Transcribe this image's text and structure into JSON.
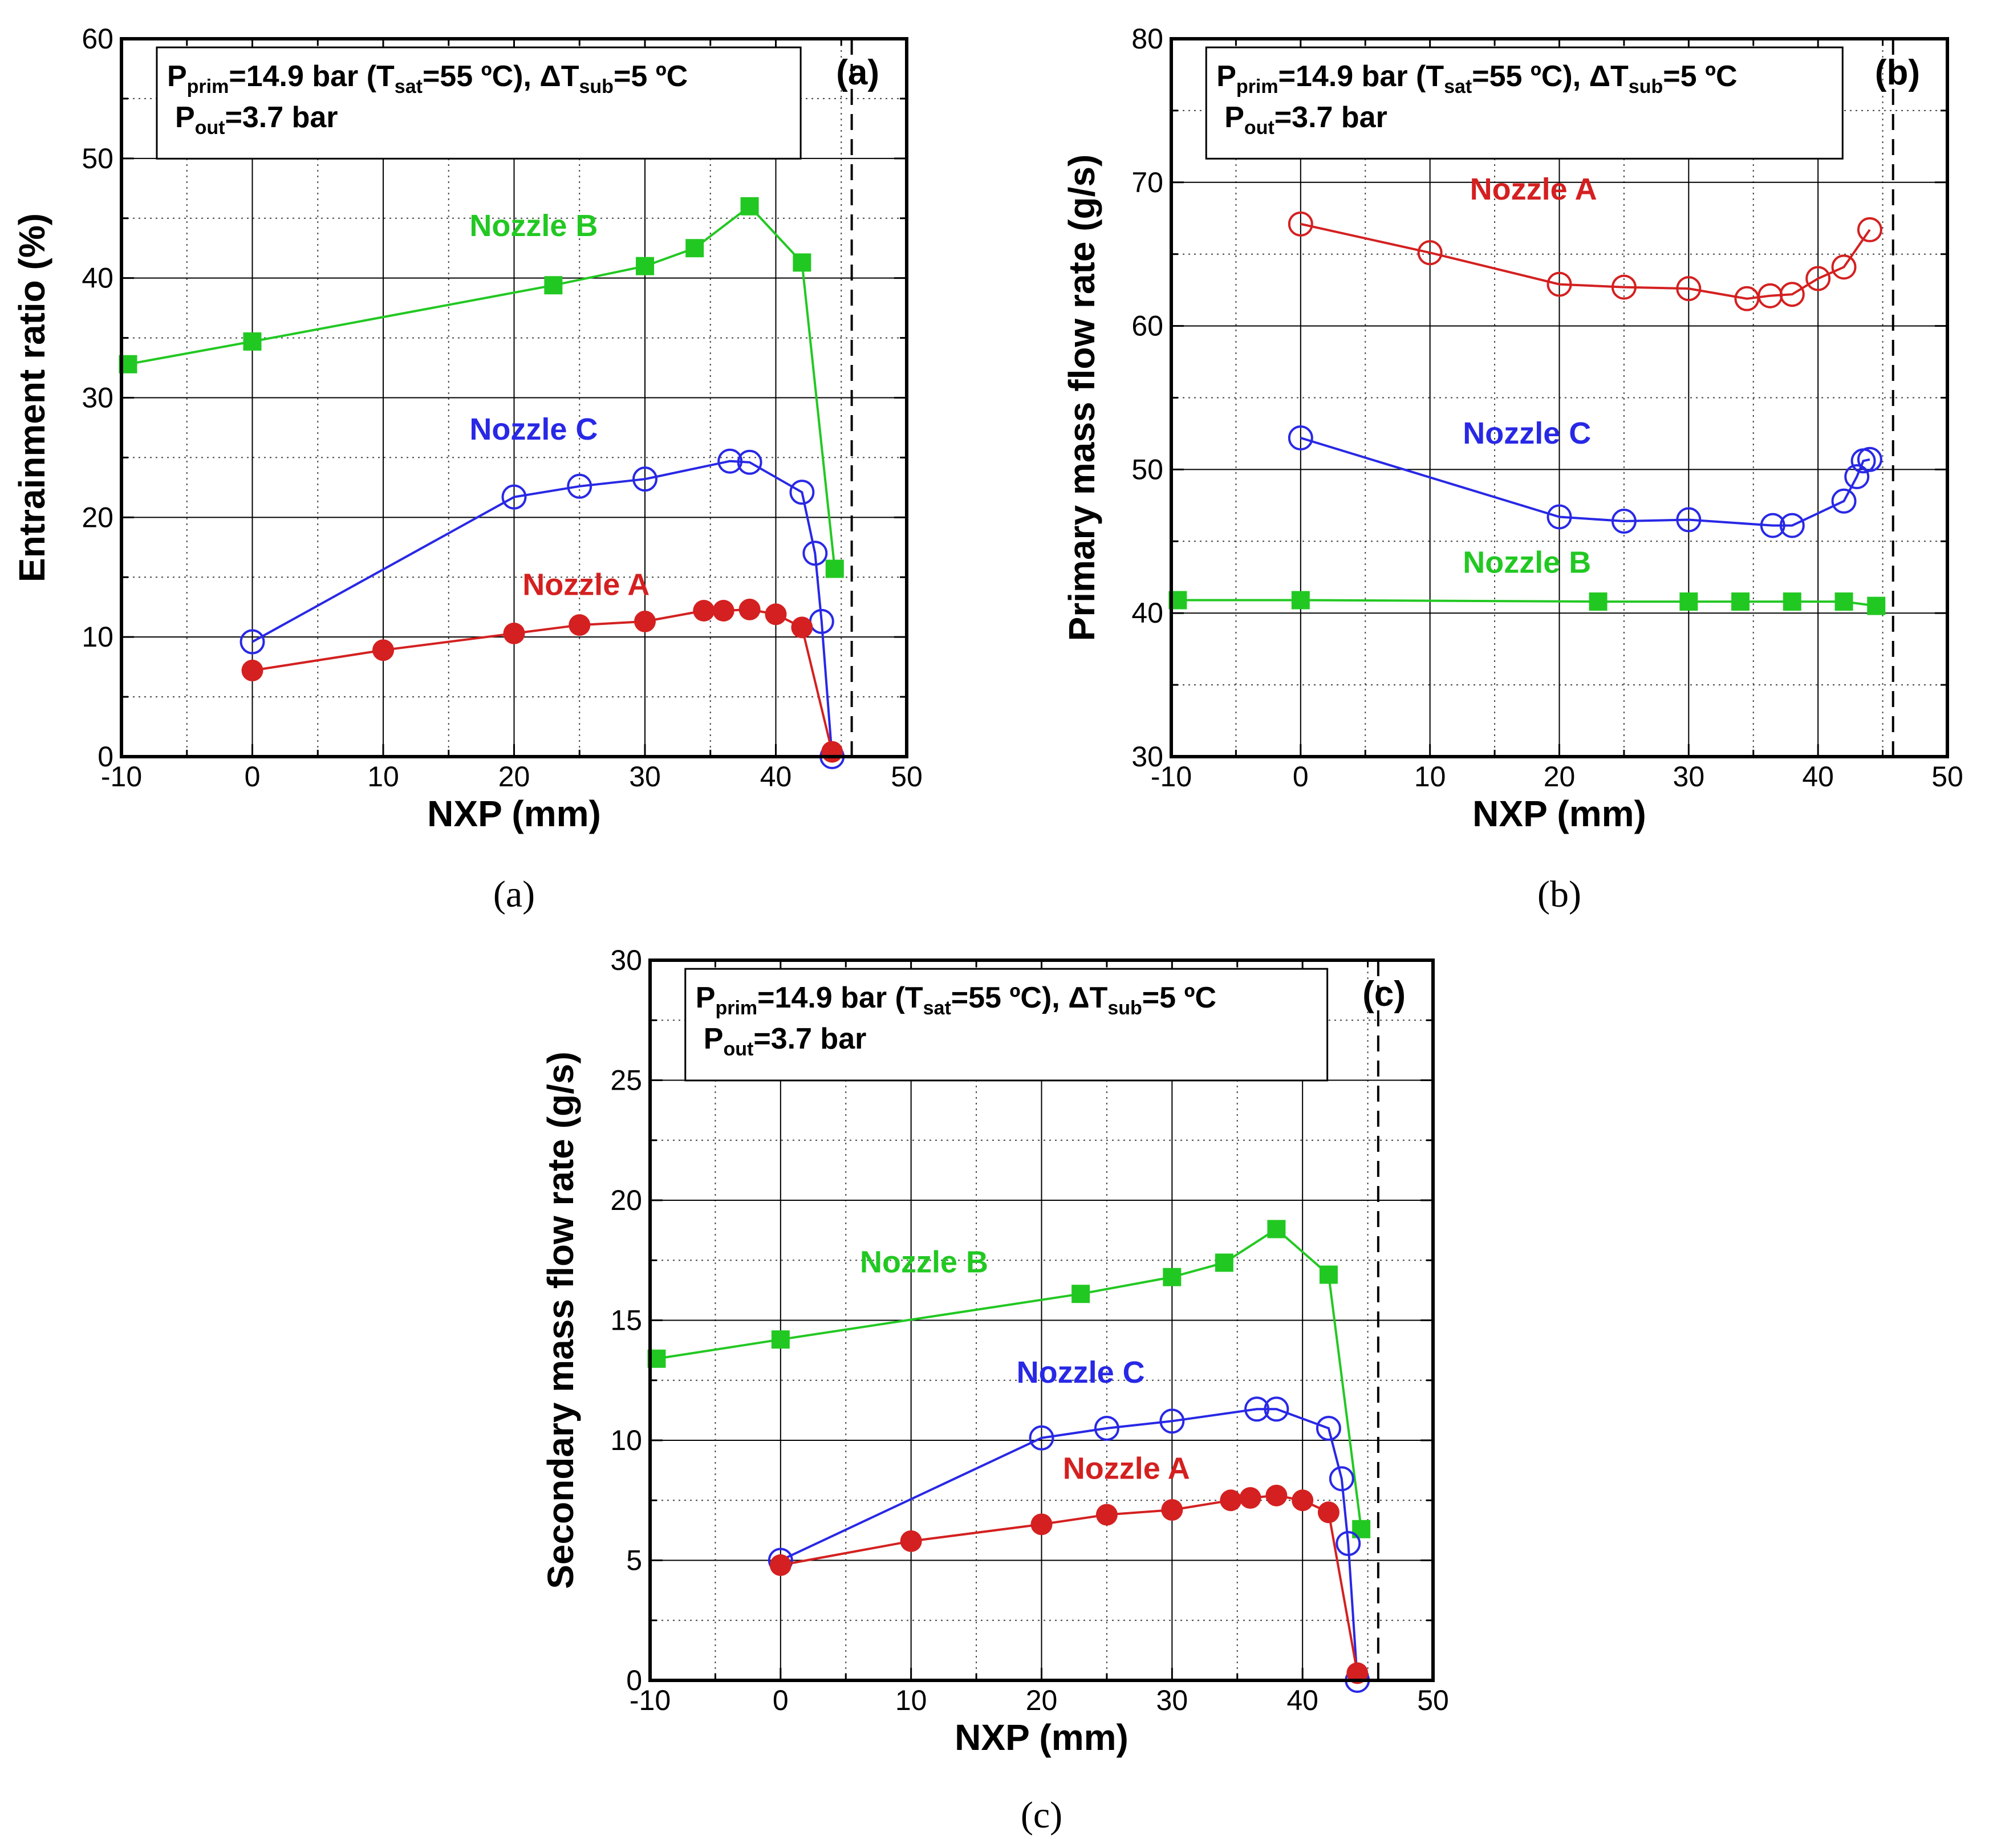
{
  "colors": {
    "nozzle_a": "#d42020",
    "nozzle_b": "#22c822",
    "nozzle_c": "#2828e6",
    "axis": "#000000",
    "grid": "#000000"
  },
  "conditions": {
    "p_label": "P",
    "p_sub": "prim",
    "p_rest_1": "=14.9 bar (T",
    "t_sub": "sat",
    "p_rest_2": "=55 ºC), ",
    "delta_label": "ΔT",
    "delta_sub": "sub",
    "delta_rest": "=5 ºC",
    "out_label": "P",
    "out_sub": "out",
    "out_rest": "=3.7 bar"
  },
  "chart_data": [
    {
      "id": "a",
      "type": "line",
      "panel_label": "(a)",
      "caption": "(a)",
      "xlabel": "NXP (mm)",
      "ylabel": "Entrainment ratio (%)",
      "xlim": [
        -10,
        50
      ],
      "ylim": [
        0,
        60
      ],
      "xticks": [
        -10,
        0,
        10,
        20,
        30,
        40,
        50
      ],
      "yticks": [
        0,
        10,
        20,
        30,
        40,
        50,
        60
      ],
      "vline_x": 45.8,
      "series": [
        {
          "name": "Nozzle B",
          "marker": "square",
          "color_key": "nozzle_b",
          "label_pos": [
            21.5,
            43.5
          ],
          "x": [
            -9.5,
            0,
            23,
            30,
            33.8,
            38,
            42,
            44.5
          ],
          "y": [
            32.8,
            34.7,
            39.4,
            41,
            42.5,
            46,
            41.3,
            15.7
          ]
        },
        {
          "name": "Nozzle C",
          "marker": "open-circle",
          "color_key": "nozzle_c",
          "label_pos": [
            21.5,
            26.5
          ],
          "x": [
            0,
            20,
            25,
            30,
            36.5,
            38,
            42,
            43,
            43.5,
            44.3
          ],
          "y": [
            9.6,
            21.7,
            22.6,
            23.2,
            24.7,
            24.6,
            22.1,
            17,
            11.3,
            0
          ]
        },
        {
          "name": "Nozzle A",
          "marker": "filled-circle",
          "color_key": "nozzle_a",
          "label_pos": [
            25.5,
            13.5
          ],
          "x": [
            0,
            10,
            20,
            25,
            30,
            34.5,
            36,
            38,
            40,
            42,
            44.3
          ],
          "y": [
            7.2,
            8.9,
            10.3,
            11,
            11.3,
            12.2,
            12.2,
            12.3,
            11.9,
            10.8,
            0.4
          ]
        }
      ]
    },
    {
      "id": "b",
      "type": "line",
      "panel_label": "(b)",
      "caption": "(b)",
      "xlabel": "NXP (mm)",
      "ylabel": "Primary mass flow rate (g/s)",
      "xlim": [
        -10,
        50
      ],
      "ylim": [
        30,
        80
      ],
      "xticks": [
        -10,
        0,
        10,
        20,
        30,
        40,
        50
      ],
      "yticks": [
        30,
        40,
        50,
        60,
        70,
        80
      ],
      "vline_x": 45.8,
      "series": [
        {
          "name": "Nozzle A",
          "marker": "open-circle",
          "color_key": "nozzle_a",
          "label_pos": [
            18,
            68.8
          ],
          "x": [
            0,
            10,
            20,
            25,
            30,
            34.5,
            36.3,
            38,
            40,
            42,
            44
          ],
          "y": [
            67.1,
            65.1,
            62.9,
            62.7,
            62.6,
            61.9,
            62.1,
            62.2,
            63.3,
            64.1,
            66.7
          ]
        },
        {
          "name": "Nozzle C",
          "marker": "open-circle",
          "color_key": "nozzle_c",
          "label_pos": [
            17.5,
            51.8
          ],
          "x": [
            0,
            20,
            25,
            30,
            36.5,
            38,
            42,
            43,
            43.5,
            44
          ],
          "y": [
            52.2,
            46.7,
            46.4,
            46.5,
            46.1,
            46.1,
            47.8,
            49.5,
            50.6,
            50.7
          ]
        },
        {
          "name": "Nozzle B",
          "marker": "square",
          "color_key": "nozzle_b",
          "label_pos": [
            17.5,
            42.8
          ],
          "x": [
            -9.5,
            0,
            23,
            30,
            34,
            38,
            42,
            44.5
          ],
          "y": [
            40.9,
            40.9,
            40.8,
            40.8,
            40.8,
            40.8,
            40.8,
            40.5
          ]
        }
      ]
    },
    {
      "id": "c",
      "type": "line",
      "panel_label": "(c)",
      "caption": "(c)",
      "xlabel": "NXP (mm)",
      "ylabel": "Secondary mass flow rate (g/s)",
      "xlim": [
        -10,
        50
      ],
      "ylim": [
        0,
        30
      ],
      "xticks": [
        -10,
        0,
        10,
        20,
        30,
        40,
        50
      ],
      "yticks": [
        0,
        5,
        10,
        15,
        20,
        25,
        30
      ],
      "vline_x": 45.8,
      "series": [
        {
          "name": "Nozzle B",
          "marker": "square",
          "color_key": "nozzle_b",
          "label_pos": [
            11,
            17
          ],
          "x": [
            -9.5,
            0,
            23,
            30,
            34,
            38,
            42,
            44.5
          ],
          "y": [
            13.4,
            14.2,
            16.1,
            16.8,
            17.4,
            18.8,
            16.9,
            6.3
          ]
        },
        {
          "name": "Nozzle C",
          "marker": "open-circle",
          "color_key": "nozzle_c",
          "label_pos": [
            23,
            12.4
          ],
          "x": [
            0,
            20,
            25,
            30,
            36.5,
            38,
            42,
            43,
            43.5,
            44.2
          ],
          "y": [
            5,
            10.1,
            10.5,
            10.8,
            11.3,
            11.3,
            10.5,
            8.4,
            5.7,
            0
          ]
        },
        {
          "name": "Nozzle A",
          "marker": "filled-circle",
          "color_key": "nozzle_a",
          "label_pos": [
            26.5,
            8.4
          ],
          "x": [
            0,
            10,
            20,
            25,
            30,
            34.5,
            36,
            38,
            40,
            42,
            44.2
          ],
          "y": [
            4.8,
            5.8,
            6.5,
            6.9,
            7.1,
            7.5,
            7.6,
            7.7,
            7.5,
            7,
            0.3
          ]
        }
      ]
    }
  ]
}
